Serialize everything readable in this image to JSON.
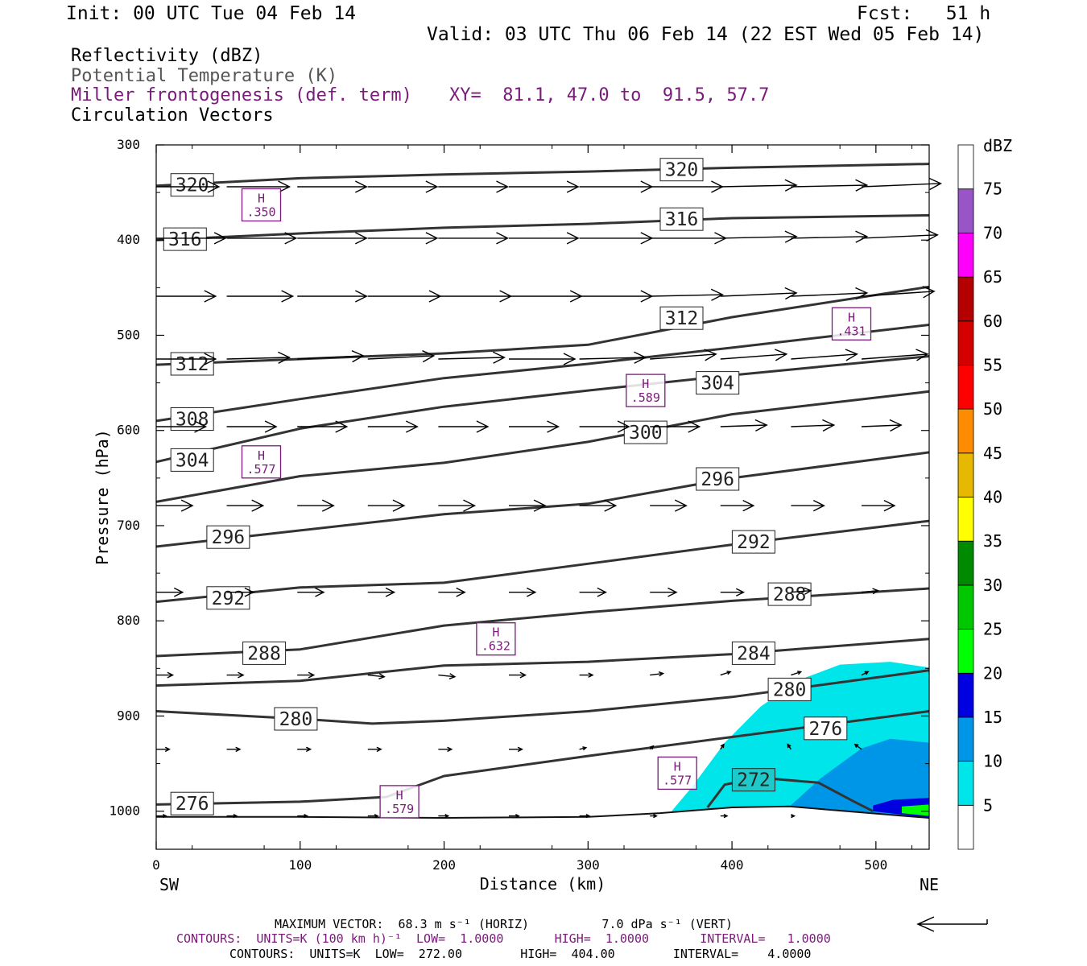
{
  "header": {
    "init": "Init: 00 UTC Tue 04 Feb 14",
    "fcst": "Fcst:   51 h",
    "valid": "Valid: 03 UTC Thu 06 Feb 14 (22 EST Wed 05 Feb 14)",
    "fields": [
      {
        "text": "Reflectivity (dBZ)",
        "color": "#000000"
      },
      {
        "text": "Potential Temperature (K)",
        "color": "#555555"
      },
      {
        "text": "Miller frontogenesis (def. term)",
        "color": "#7a1a7a"
      },
      {
        "text": "Circulation Vectors",
        "color": "#000000"
      }
    ],
    "xy": "XY=  81.1, 47.0 to  91.5, 57.7"
  },
  "footer": {
    "max_vector": "MAXIMUM VECTOR:  68.3 m s⁻¹ (HORIZ)          7.0 dPa s⁻¹ (VERT)",
    "contours_fronto": "CONTOURS:  UNITS=K (100 km h)⁻¹  LOW=  1.0000       HIGH=  1.0000       INTERVAL=   1.0000",
    "contours_theta": "CONTOURS:  UNITS=K  LOW=  272.00        HIGH=  404.00        INTERVAL=    4.0000"
  },
  "chart_data": {
    "type": "cross-section",
    "xlabel": "Distance (km)",
    "ylabel": "Pressure (hPa)",
    "xlim": [
      0,
      537
    ],
    "ylim": [
      1040,
      300
    ],
    "x_ticks": [
      0,
      100,
      200,
      300,
      400,
      500
    ],
    "y_ticks": [
      300,
      400,
      500,
      600,
      700,
      800,
      900,
      1000
    ],
    "x_end_labels": {
      "left": "SW",
      "right": "NE"
    },
    "colorbar": {
      "unit": "dBZ",
      "levels": [
        5,
        10,
        15,
        20,
        25,
        30,
        35,
        40,
        45,
        50,
        55,
        60,
        65,
        70,
        75
      ],
      "colors": [
        "#ffffff",
        "#00e5ea",
        "#0096e8",
        "#0000e0",
        "#00ff00",
        "#00c800",
        "#008a00",
        "#ffff00",
        "#e6b800",
        "#ff8c00",
        "#ff0000",
        "#d40000",
        "#b40000",
        "#ff00ff",
        "#9955c8",
        "#ffffff"
      ]
    },
    "terrain": [
      [
        0,
        1006
      ],
      [
        100,
        1006
      ],
      [
        200,
        1007
      ],
      [
        300,
        1006
      ],
      [
        350,
        1002
      ],
      [
        400,
        996
      ],
      [
        440,
        995
      ],
      [
        480,
        1000
      ],
      [
        520,
        1005
      ],
      [
        537,
        1007
      ]
    ],
    "reflectivity": [
      {
        "dbz": 5,
        "polygon": [
          [
            358,
            1000
          ],
          [
            372,
            975
          ],
          [
            395,
            928
          ],
          [
            420,
            890
          ],
          [
            447,
            862
          ],
          [
            475,
            846
          ],
          [
            510,
            843
          ],
          [
            537,
            849
          ],
          [
            537,
            1007
          ],
          [
            480,
            1000
          ],
          [
            440,
            995
          ],
          [
            400,
            996
          ],
          [
            358,
            1000
          ]
        ]
      },
      {
        "dbz": 10,
        "polygon": [
          [
            440,
            995
          ],
          [
            462,
            965
          ],
          [
            490,
            934
          ],
          [
            510,
            924
          ],
          [
            537,
            928
          ],
          [
            537,
            1007
          ],
          [
            480,
            1000
          ],
          [
            440,
            995
          ]
        ]
      },
      {
        "dbz": 15,
        "polygon": [
          [
            498,
            994
          ],
          [
            512,
            988
          ],
          [
            537,
            986
          ],
          [
            537,
            1007
          ],
          [
            498,
            1000
          ]
        ]
      },
      {
        "dbz": 20,
        "polygon": [
          [
            518,
            995
          ],
          [
            537,
            993
          ],
          [
            537,
            1005
          ],
          [
            518,
            1002
          ]
        ]
      }
    ],
    "theta_contours": [
      {
        "value": 320,
        "points": [
          [
            0,
            343
          ],
          [
            100,
            335
          ],
          [
            200,
            331
          ],
          [
            300,
            328
          ],
          [
            400,
            324
          ],
          [
            537,
            320
          ]
        ],
        "labels": [
          [
            25,
            342
          ],
          [
            365,
            326
          ]
        ]
      },
      {
        "value": 316,
        "points": [
          [
            0,
            400
          ],
          [
            100,
            393
          ],
          [
            200,
            387
          ],
          [
            300,
            383
          ],
          [
            400,
            377
          ],
          [
            537,
            374
          ]
        ],
        "labels": [
          [
            20,
            399
          ],
          [
            365,
            378
          ]
        ]
      },
      {
        "value": 312,
        "points": [
          [
            0,
            531
          ],
          [
            100,
            525
          ],
          [
            200,
            519
          ],
          [
            300,
            510
          ],
          [
            400,
            481
          ],
          [
            537,
            449
          ]
        ],
        "labels": [
          [
            25,
            530
          ],
          [
            365,
            482
          ]
        ]
      },
      {
        "value": 308,
        "points": [
          [
            0,
            590
          ],
          [
            100,
            567
          ],
          [
            200,
            545
          ],
          [
            300,
            530
          ],
          [
            400,
            513
          ],
          [
            537,
            489
          ]
        ],
        "labels": [
          [
            25,
            588
          ]
        ]
      },
      {
        "value": 304,
        "points": [
          [
            0,
            633
          ],
          [
            100,
            598
          ],
          [
            200,
            575
          ],
          [
            300,
            558
          ],
          [
            400,
            542
          ],
          [
            537,
            522
          ]
        ],
        "labels": [
          [
            25,
            631
          ],
          [
            390,
            550
          ]
        ]
      },
      {
        "value": 300,
        "points": [
          [
            0,
            675
          ],
          [
            100,
            648
          ],
          [
            200,
            634
          ],
          [
            300,
            612
          ],
          [
            400,
            583
          ],
          [
            537,
            559
          ]
        ],
        "labels": [
          [
            340,
            602
          ]
        ]
      },
      {
        "value": 296,
        "points": [
          [
            0,
            722
          ],
          [
            100,
            705
          ],
          [
            200,
            688
          ],
          [
            300,
            677
          ],
          [
            400,
            650
          ],
          [
            537,
            623
          ]
        ],
        "labels": [
          [
            50,
            712
          ],
          [
            390,
            651
          ]
        ]
      },
      {
        "value": 292,
        "points": [
          [
            0,
            780
          ],
          [
            100,
            765
          ],
          [
            200,
            760
          ],
          [
            300,
            740
          ],
          [
            400,
            720
          ],
          [
            537,
            695
          ]
        ],
        "labels": [
          [
            50,
            776
          ],
          [
            415,
            717
          ]
        ]
      },
      {
        "value": 288,
        "points": [
          [
            0,
            837
          ],
          [
            100,
            830
          ],
          [
            200,
            805
          ],
          [
            300,
            791
          ],
          [
            400,
            779
          ],
          [
            537,
            766
          ]
        ],
        "labels": [
          [
            75,
            834
          ],
          [
            440,
            772
          ]
        ]
      },
      {
        "value": 284,
        "points": [
          [
            0,
            868
          ],
          [
            100,
            863
          ],
          [
            200,
            847
          ],
          [
            300,
            843
          ],
          [
            400,
            835
          ],
          [
            537,
            819
          ]
        ],
        "labels": [
          [
            415,
            834
          ]
        ]
      },
      {
        "value": 280,
        "points": [
          [
            0,
            895
          ],
          [
            100,
            903
          ],
          [
            150,
            908
          ],
          [
            200,
            905
          ],
          [
            300,
            895
          ],
          [
            400,
            880
          ],
          [
            537,
            852
          ]
        ],
        "labels": [
          [
            97,
            903
          ],
          [
            440,
            872
          ]
        ]
      },
      {
        "value": 276,
        "points": [
          [
            0,
            993
          ],
          [
            100,
            990
          ],
          [
            160,
            985
          ],
          [
            200,
            963
          ],
          [
            300,
            942
          ],
          [
            400,
            922
          ],
          [
            537,
            895
          ]
        ],
        "labels": [
          [
            25,
            992
          ],
          [
            465,
            913
          ]
        ]
      },
      {
        "value": 272,
        "points": [
          [
            383,
            996
          ],
          [
            395,
            972
          ],
          [
            420,
            965
          ],
          [
            460,
            970
          ],
          [
            485,
            990
          ],
          [
            498,
            1000
          ]
        ],
        "labels": [
          [
            415,
            967
          ]
        ]
      }
    ],
    "frontogenesis_maxima": [
      {
        "x": 73,
        "p": 363,
        "label": "H",
        "value": ".350"
      },
      {
        "x": 483,
        "p": 488,
        "label": "H",
        "value": ".431"
      },
      {
        "x": 340,
        "p": 558,
        "label": "H",
        "value": ".589"
      },
      {
        "x": 73,
        "p": 633,
        "label": "H",
        "value": ".577"
      },
      {
        "x": 236,
        "p": 819,
        "label": "H",
        "value": ".632"
      },
      {
        "x": 362,
        "p": 960,
        "label": "H",
        "value": ".577"
      },
      {
        "x": 169,
        "p": 990,
        "label": "H",
        "value": ".579"
      }
    ],
    "vector_rows": [
      {
        "p": 344,
        "start": 0,
        "step": 49,
        "count": 11,
        "u": [
          38,
          38,
          42,
          42,
          42,
          42,
          44,
          44,
          46,
          46,
          48
        ],
        "w": [
          0,
          0,
          0,
          0,
          0,
          0,
          0,
          0,
          1,
          1,
          2
        ]
      },
      {
        "p": 398,
        "start": 0,
        "step": 49,
        "count": 11,
        "u": [
          42,
          42,
          42,
          42,
          42,
          42,
          44,
          46,
          46,
          46,
          46
        ],
        "w": [
          0,
          0,
          0,
          0,
          0,
          0,
          0,
          0,
          1,
          1,
          2
        ]
      },
      {
        "p": 459,
        "start": 0,
        "step": 49,
        "count": 11,
        "u": [
          36,
          40,
          42,
          44,
          44,
          44,
          44,
          44,
          46,
          46,
          44
        ],
        "w": [
          0,
          0,
          0,
          0,
          0,
          0,
          0,
          1,
          2,
          2,
          3
        ]
      },
      {
        "p": 525,
        "start": 0,
        "step": 49,
        "count": 11,
        "u": [
          36,
          38,
          40,
          40,
          40,
          40,
          40,
          40,
          40,
          40,
          40
        ],
        "w": [
          0,
          1,
          2,
          2,
          1,
          0,
          1,
          3,
          3,
          3,
          3
        ]
      },
      {
        "p": 596,
        "start": 0,
        "step": 49,
        "count": 11,
        "u": [
          30,
          30,
          30,
          30,
          30,
          30,
          30,
          30,
          28,
          26,
          24
        ],
        "w": [
          0,
          0,
          0,
          0,
          0,
          0,
          0,
          0,
          1,
          1,
          1
        ]
      },
      {
        "p": 679,
        "start": 0,
        "step": 49,
        "count": 11,
        "u": [
          22,
          22,
          22,
          22,
          22,
          22,
          22,
          22,
          20,
          20,
          20
        ],
        "w": [
          0,
          0,
          0,
          0,
          0,
          0,
          0,
          0,
          0,
          0,
          0
        ]
      },
      {
        "p": 770,
        "start": 0,
        "step": 49,
        "count": 11,
        "u": [
          16,
          16,
          16,
          16,
          16,
          16,
          16,
          16,
          14,
          12,
          10
        ],
        "w": [
          0,
          0,
          0,
          0,
          0,
          0,
          0,
          0,
          0,
          1,
          1
        ]
      },
      {
        "p": 857,
        "start": 0,
        "step": 49,
        "count": 11,
        "u": [
          10,
          10,
          10,
          10,
          10,
          10,
          8,
          8,
          6,
          6,
          4
        ],
        "w": [
          0,
          0,
          0,
          -1,
          -1,
          0,
          0,
          1,
          2,
          2,
          2
        ]
      },
      {
        "p": 935,
        "start": 0,
        "step": 49,
        "count": 11,
        "u": [
          8,
          8,
          8,
          8,
          8,
          8,
          4,
          2,
          2,
          -2,
          -4
        ],
        "w": [
          0,
          0,
          0,
          0,
          0,
          0,
          1,
          2,
          3,
          3,
          3
        ]
      },
      {
        "p": 1005,
        "start": 0,
        "step": 49,
        "count": 11,
        "u": [
          6,
          6,
          6,
          6,
          6,
          6,
          6,
          4,
          4,
          2,
          0
        ],
        "w": [
          0,
          0,
          0,
          0,
          0,
          0,
          0,
          0,
          0,
          0,
          0
        ]
      }
    ]
  }
}
